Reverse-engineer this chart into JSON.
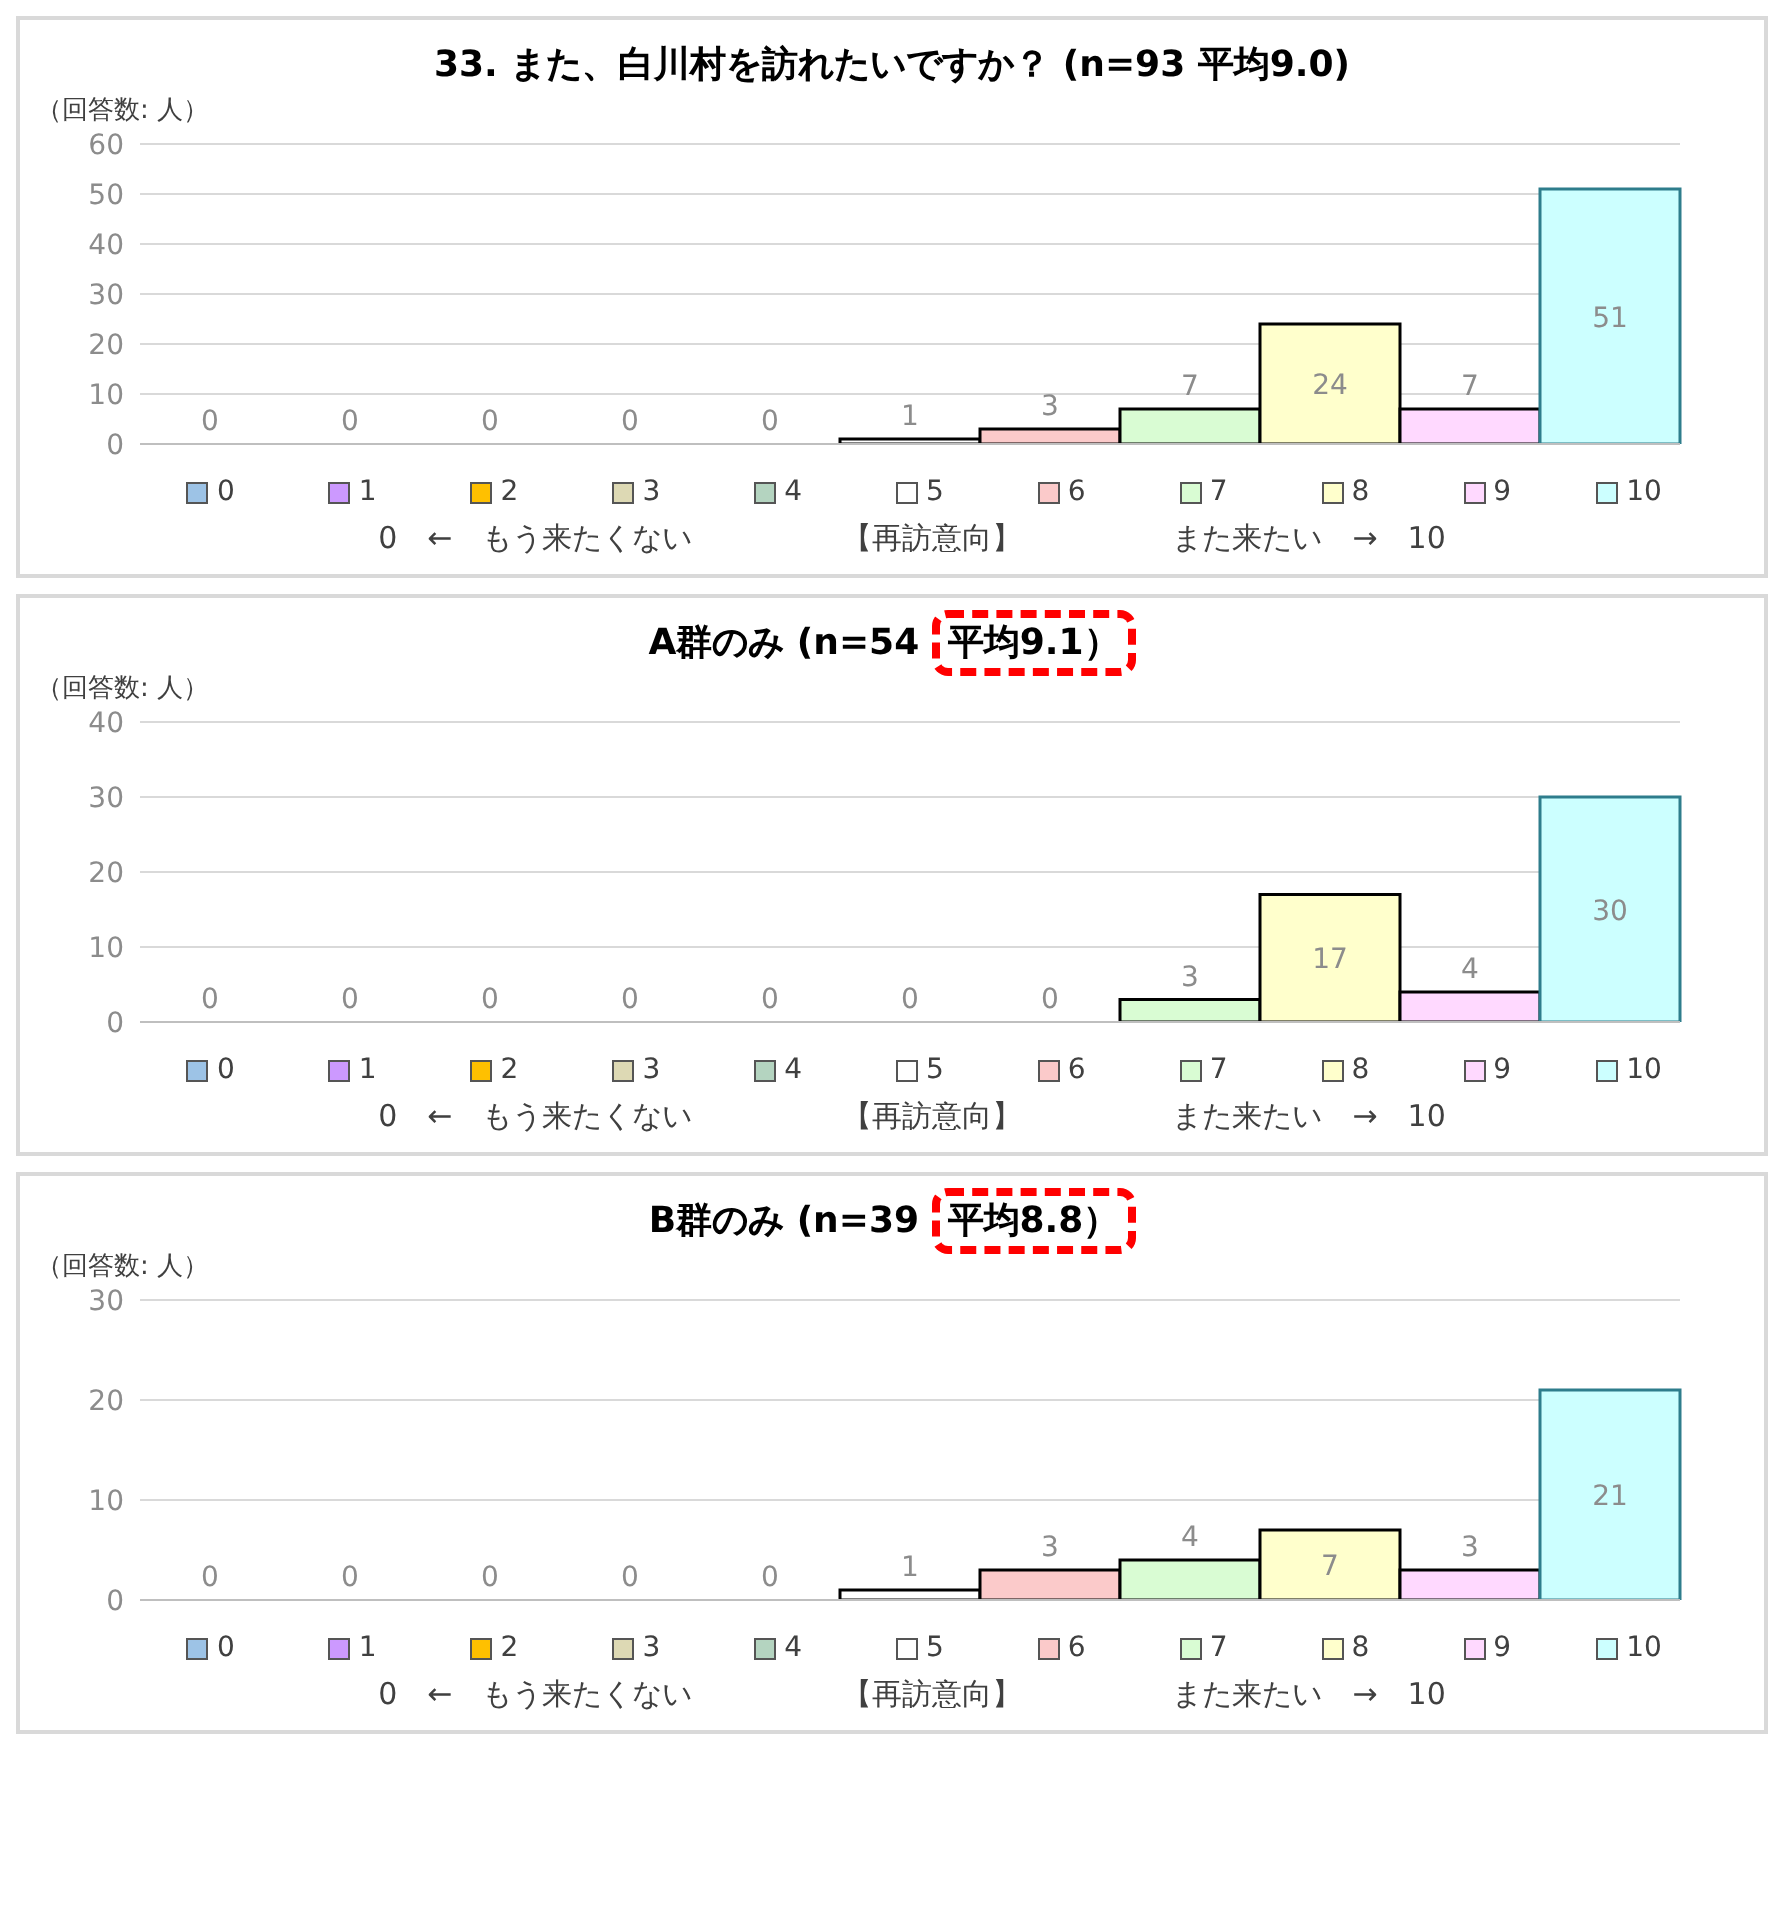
{
  "chart_data": [
    {
      "type": "bar",
      "title": "33. また、白川村を訪れたいですか？ (n=93  平均9.0)",
      "ylabel": "（回答数: 人）",
      "xlabel": "0　←　もう来たくない　　　　　【再訪意向】　　　　　また来たい　→　10",
      "categories": [
        null,
        null,
        null,
        null,
        null,
        null,
        null,
        null,
        null,
        null,
        null
      ],
      "series": [
        {
          "name": "0",
          "color": "#9dc3e6",
          "values": [
            0,
            null,
            null,
            null,
            null,
            null,
            null,
            null,
            null,
            null,
            null
          ]
        },
        {
          "name": "1",
          "color": "#cc99ff",
          "values": [
            null,
            0,
            null,
            null,
            null,
            null,
            null,
            null,
            null,
            null,
            null
          ]
        },
        {
          "name": "2",
          "color": "#ffc000",
          "values": [
            null,
            null,
            0,
            null,
            null,
            null,
            null,
            null,
            null,
            null,
            null
          ]
        },
        {
          "name": "3",
          "color": "#ddd9b4",
          "values": [
            null,
            null,
            null,
            0,
            null,
            null,
            null,
            null,
            null,
            null,
            null
          ]
        },
        {
          "name": "4",
          "color": "#b4d4c0",
          "values": [
            null,
            null,
            null,
            null,
            0,
            null,
            null,
            null,
            null,
            null,
            null
          ]
        },
        {
          "name": "5",
          "color": "#ffffff",
          "values": [
            null,
            null,
            null,
            null,
            null,
            1,
            null,
            null,
            null,
            null,
            null
          ]
        },
        {
          "name": "6",
          "color": "#fbcaca",
          "values": [
            null,
            null,
            null,
            null,
            null,
            null,
            3,
            null,
            null,
            null,
            null
          ]
        },
        {
          "name": "7",
          "color": "#d9fcd3",
          "values": [
            null,
            null,
            null,
            null,
            null,
            null,
            null,
            7,
            null,
            null,
            null
          ]
        },
        {
          "name": "8",
          "color": "#ffffcc",
          "values": [
            null,
            null,
            null,
            null,
            null,
            null,
            null,
            null,
            24,
            null,
            null
          ]
        },
        {
          "name": "9",
          "color": "#ffd9ff",
          "values": [
            null,
            null,
            null,
            null,
            null,
            null,
            null,
            null,
            null,
            7,
            null
          ]
        },
        {
          "name": "10",
          "color": "#ccffff",
          "values": [
            null,
            null,
            null,
            null,
            null,
            null,
            null,
            null,
            null,
            null,
            51
          ]
        }
      ],
      "ylim": [
        0,
        60
      ],
      "yticks": [
        0,
        10,
        20,
        30,
        40,
        50,
        60
      ],
      "grid": "y",
      "legend": "bottom",
      "data_labels": true
    },
    {
      "type": "bar",
      "title": "A群のみ (n=54 平均9.1）",
      "ylabel": "（回答数: 人）",
      "xlabel": "0　←　もう来たくない　　　　　【再訪意向】　　　　　また来たい　→　10",
      "categories": [
        null,
        null,
        null,
        null,
        null,
        null,
        null,
        null,
        null,
        null,
        null
      ],
      "series": [
        {
          "name": "0",
          "color": "#9dc3e6",
          "values": [
            0,
            null,
            null,
            null,
            null,
            null,
            null,
            null,
            null,
            null,
            null
          ]
        },
        {
          "name": "1",
          "color": "#cc99ff",
          "values": [
            null,
            0,
            null,
            null,
            null,
            null,
            null,
            null,
            null,
            null,
            null
          ]
        },
        {
          "name": "2",
          "color": "#ffc000",
          "values": [
            null,
            null,
            0,
            null,
            null,
            null,
            null,
            null,
            null,
            null,
            null
          ]
        },
        {
          "name": "3",
          "color": "#ddd9b4",
          "values": [
            null,
            null,
            null,
            0,
            null,
            null,
            null,
            null,
            null,
            null,
            null
          ]
        },
        {
          "name": "4",
          "color": "#b4d4c0",
          "values": [
            null,
            null,
            null,
            null,
            0,
            null,
            null,
            null,
            null,
            null,
            null
          ]
        },
        {
          "name": "5",
          "color": "#ffffff",
          "values": [
            null,
            null,
            null,
            null,
            null,
            0,
            null,
            null,
            null,
            null,
            null
          ]
        },
        {
          "name": "6",
          "color": "#fbcaca",
          "values": [
            null,
            null,
            null,
            null,
            null,
            null,
            0,
            null,
            null,
            null,
            null
          ]
        },
        {
          "name": "7",
          "color": "#d9fcd3",
          "values": [
            null,
            null,
            null,
            null,
            null,
            null,
            null,
            3,
            null,
            null,
            null
          ]
        },
        {
          "name": "8",
          "color": "#ffffcc",
          "values": [
            null,
            null,
            null,
            null,
            null,
            null,
            null,
            null,
            17,
            null,
            null
          ]
        },
        {
          "name": "9",
          "color": "#ffd9ff",
          "values": [
            null,
            null,
            null,
            null,
            null,
            null,
            null,
            null,
            null,
            4,
            null
          ]
        },
        {
          "name": "10",
          "color": "#ccffff",
          "values": [
            null,
            null,
            null,
            null,
            null,
            null,
            null,
            null,
            null,
            null,
            30
          ]
        }
      ],
      "ylim": [
        0,
        40
      ],
      "yticks": [
        0,
        10,
        20,
        30,
        40
      ],
      "grid": "y",
      "legend": "bottom",
      "data_labels": true
    },
    {
      "type": "bar",
      "title": "B群のみ (n=39 平均8.8）",
      "ylabel": "（回答数: 人）",
      "xlabel": "0　←　もう来たくない　　　　　【再訪意向】　　　　　また来たい　→　10",
      "categories": [
        null,
        null,
        null,
        null,
        null,
        null,
        null,
        null,
        null,
        null,
        null
      ],
      "series": [
        {
          "name": "0",
          "color": "#9dc3e6",
          "values": [
            0,
            null,
            null,
            null,
            null,
            null,
            null,
            null,
            null,
            null,
            null
          ]
        },
        {
          "name": "1",
          "color": "#cc99ff",
          "values": [
            null,
            0,
            null,
            null,
            null,
            null,
            null,
            null,
            null,
            null,
            null
          ]
        },
        {
          "name": "2",
          "color": "#ffc000",
          "values": [
            null,
            null,
            0,
            null,
            null,
            null,
            null,
            null,
            null,
            null,
            null
          ]
        },
        {
          "name": "3",
          "color": "#ddd9b4",
          "values": [
            null,
            null,
            null,
            0,
            null,
            null,
            null,
            null,
            null,
            null,
            null
          ]
        },
        {
          "name": "4",
          "color": "#b4d4c0",
          "values": [
            null,
            null,
            null,
            null,
            0,
            null,
            null,
            null,
            null,
            null,
            null
          ]
        },
        {
          "name": "5",
          "color": "#ffffff",
          "values": [
            null,
            null,
            null,
            null,
            null,
            1,
            null,
            null,
            null,
            null,
            null
          ]
        },
        {
          "name": "6",
          "color": "#fbcaca",
          "values": [
            null,
            null,
            null,
            null,
            null,
            null,
            3,
            null,
            null,
            null,
            null
          ]
        },
        {
          "name": "7",
          "color": "#d9fcd3",
          "values": [
            null,
            null,
            null,
            null,
            null,
            null,
            null,
            4,
            null,
            null,
            null
          ]
        },
        {
          "name": "8",
          "color": "#ffffcc",
          "values": [
            null,
            null,
            null,
            null,
            null,
            null,
            null,
            null,
            7,
            null,
            null
          ]
        },
        {
          "name": "9",
          "color": "#ffd9ff",
          "values": [
            null,
            null,
            null,
            null,
            null,
            null,
            null,
            null,
            null,
            3,
            null
          ]
        },
        {
          "name": "10",
          "color": "#ccffff",
          "values": [
            null,
            null,
            null,
            null,
            null,
            null,
            null,
            null,
            null,
            null,
            21
          ]
        }
      ],
      "ylim": [
        0,
        30
      ],
      "yticks": [
        0,
        10,
        20,
        30
      ],
      "grid": "y",
      "legend": "bottom",
      "data_labels": true
    }
  ]
}
